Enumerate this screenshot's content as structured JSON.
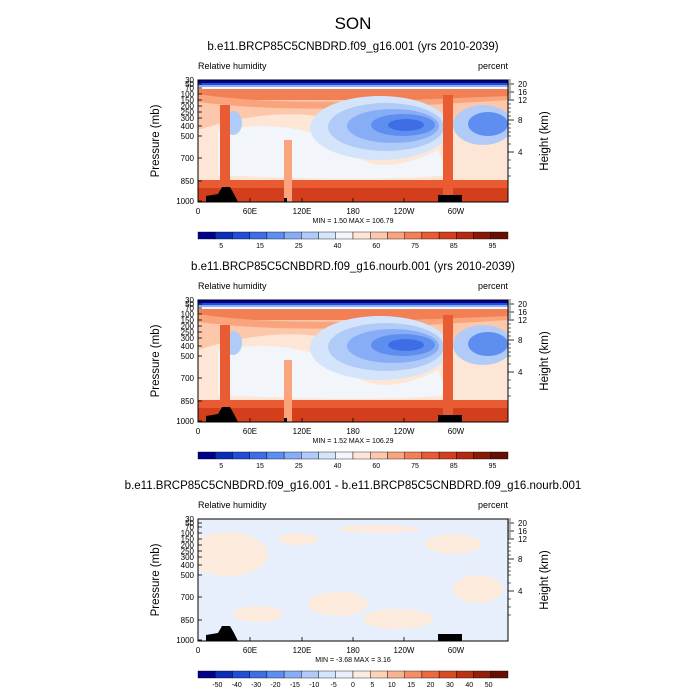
{
  "figure": {
    "title": "SON"
  },
  "chart_data": [
    {
      "type": "heatmap",
      "title": "b.e11.BRCP85C5CNBDRD.f09_g16.001 (yrs 2010-2039)",
      "left_label": "Relative humidity",
      "right_label": "percent",
      "xlabel": "",
      "ylabel": "Pressure (mb)",
      "ylabel_right": "Height (km)",
      "xticks": [
        "0",
        "60E",
        "120E",
        "180",
        "120W",
        "60W"
      ],
      "yticks": [
        "30",
        "50",
        "70",
        "100",
        "150",
        "200",
        "250",
        "300",
        "400",
        "500",
        "700",
        "850",
        "1000"
      ],
      "yticks_right": [
        "20",
        "16",
        "12",
        "8",
        "4"
      ],
      "stats": "MIN =   1.50  MAX = 106.79",
      "colorbar": {
        "colors": [
          "#00008b",
          "#0a2fb4",
          "#1f4fd8",
          "#3d6ee6",
          "#5e8ef0",
          "#86adf5",
          "#b0cbf8",
          "#d4e4fa",
          "#f2f6fb",
          "#fde6d6",
          "#fcc7aa",
          "#f9a47c",
          "#f37f55",
          "#e85b33",
          "#d33f1c",
          "#b42a10",
          "#8a1a08",
          "#660f03"
        ],
        "labels": [
          "5",
          "15",
          "25",
          "40",
          "60",
          "75",
          "85",
          "95"
        ]
      }
    },
    {
      "type": "heatmap",
      "title": "b.e11.BRCP85C5CNBDRD.f09_g16.nourb.001 (yrs 2010-2039)",
      "left_label": "Relative humidity",
      "right_label": "percent",
      "xlabel": "",
      "ylabel": "Pressure (mb)",
      "ylabel_right": "Height (km)",
      "xticks": [
        "0",
        "60E",
        "120E",
        "180",
        "120W",
        "60W"
      ],
      "yticks": [
        "30",
        "50",
        "70",
        "100",
        "150",
        "200",
        "250",
        "300",
        "400",
        "500",
        "700",
        "850",
        "1000"
      ],
      "yticks_right": [
        "20",
        "16",
        "12",
        "8",
        "4"
      ],
      "stats": "MIN =   1.52  MAX = 106.29",
      "colorbar": {
        "colors": [
          "#00008b",
          "#0a2fb4",
          "#1f4fd8",
          "#3d6ee6",
          "#5e8ef0",
          "#86adf5",
          "#b0cbf8",
          "#d4e4fa",
          "#f2f6fb",
          "#fde6d6",
          "#fcc7aa",
          "#f9a47c",
          "#f37f55",
          "#e85b33",
          "#d33f1c",
          "#b42a10",
          "#8a1a08",
          "#660f03"
        ],
        "labels": [
          "5",
          "15",
          "25",
          "40",
          "60",
          "75",
          "85",
          "95"
        ]
      }
    },
    {
      "type": "heatmap",
      "title": "b.e11.BRCP85C5CNBDRD.f09_g16.001 - b.e11.BRCP85C5CNBDRD.f09_g16.nourb.001",
      "left_label": "Relative humidity",
      "right_label": "percent",
      "xlabel": "",
      "ylabel": "Pressure (mb)",
      "ylabel_right": "Height (km)",
      "xticks": [
        "0",
        "60E",
        "120E",
        "180",
        "120W",
        "60W"
      ],
      "yticks": [
        "30",
        "50",
        "70",
        "100",
        "150",
        "200",
        "250",
        "300",
        "400",
        "500",
        "700",
        "850",
        "1000"
      ],
      "yticks_right": [
        "20",
        "16",
        "12",
        "8",
        "4"
      ],
      "stats": "MIN =  -3.68  MAX =   3.16",
      "colorbar": {
        "colors": [
          "#00008b",
          "#0a2fb4",
          "#1f4fd8",
          "#3d6ee6",
          "#5e8ef0",
          "#86adf5",
          "#b0cbf8",
          "#d4e4fa",
          "#e6effb",
          "#fdebdd",
          "#fcd3b8",
          "#fab392",
          "#f58e68",
          "#ec6a42",
          "#d94b25",
          "#bb3212",
          "#921f08",
          "#660f03"
        ],
        "labels": [
          "-50",
          "-40",
          "-30",
          "-20",
          "-15",
          "-10",
          "-5",
          "0",
          "5",
          "10",
          "15",
          "20",
          "30",
          "40",
          "50"
        ]
      }
    }
  ]
}
